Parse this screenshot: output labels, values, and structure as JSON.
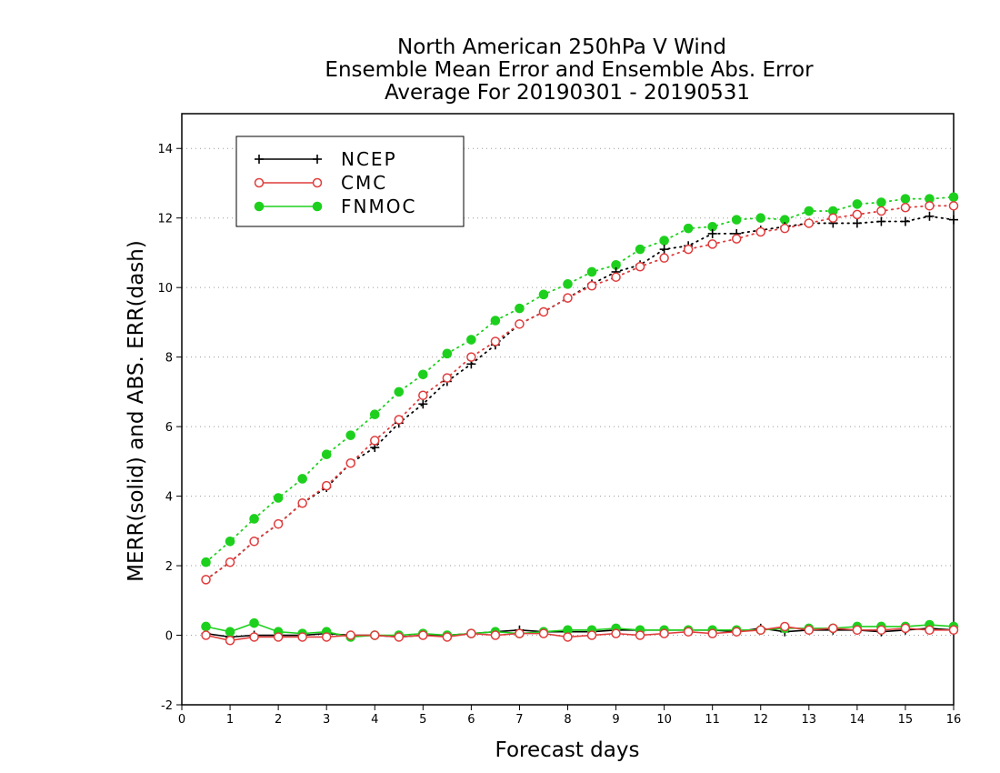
{
  "chart_data": {
    "type": "line",
    "title": [
      "North American 250hPa V Wind",
      "Ensemble Mean Error and Ensemble Abs. Error",
      "Average For 20190301 - 20190531"
    ],
    "xlabel": "Forecast days",
    "ylabel": "MERR(solid) and ABS. ERR(dash)",
    "xlim": [
      0,
      16
    ],
    "ylim": [
      -2,
      15
    ],
    "xticks": [
      0,
      1,
      2,
      3,
      4,
      5,
      6,
      7,
      8,
      9,
      10,
      11,
      12,
      13,
      14,
      15,
      16
    ],
    "yticks": [
      -2,
      0,
      2,
      4,
      6,
      8,
      10,
      12,
      14
    ],
    "grid": "horizontal dotted",
    "legend_position": "top-left",
    "x": [
      0.5,
      1,
      1.5,
      2,
      2.5,
      3,
      3.5,
      4,
      4.5,
      5,
      5.5,
      6,
      6.5,
      7,
      7.5,
      8,
      8.5,
      9,
      9.5,
      10,
      10.5,
      11,
      11.5,
      12,
      12.5,
      13,
      13.5,
      14,
      14.5,
      15,
      15.5,
      16
    ],
    "series": [
      {
        "name": "NCEP",
        "color": "#000000",
        "marker": "plus",
        "abs_err": [
          1.6,
          2.1,
          2.7,
          3.2,
          3.8,
          4.25,
          4.95,
          5.4,
          6.1,
          6.65,
          7.3,
          7.8,
          8.35,
          8.95,
          9.3,
          9.7,
          10.1,
          10.45,
          10.65,
          11.1,
          11.2,
          11.55,
          11.55,
          11.65,
          11.75,
          11.85,
          11.85,
          11.85,
          11.9,
          11.9,
          12.05,
          11.95
        ],
        "mean_err": [
          0.05,
          -0.05,
          0.0,
          0.0,
          0.0,
          0.05,
          0.0,
          0.0,
          -0.05,
          0.0,
          0.0,
          0.05,
          0.1,
          0.15,
          0.1,
          0.1,
          0.1,
          0.15,
          0.15,
          0.15,
          0.15,
          0.15,
          0.1,
          0.2,
          0.1,
          0.15,
          0.15,
          0.15,
          0.1,
          0.15,
          0.2,
          0.15
        ]
      },
      {
        "name": "CMC",
        "color": "#e03c3c",
        "marker": "open-circle",
        "abs_err": [
          1.6,
          2.1,
          2.7,
          3.2,
          3.8,
          4.3,
          4.95,
          5.6,
          6.2,
          6.9,
          7.4,
          8.0,
          8.45,
          8.95,
          9.3,
          9.7,
          10.05,
          10.3,
          10.6,
          10.85,
          11.1,
          11.25,
          11.4,
          11.6,
          11.7,
          11.85,
          12.0,
          12.1,
          12.2,
          12.3,
          12.35,
          12.35
        ],
        "mean_err": [
          0.0,
          -0.15,
          -0.05,
          -0.05,
          -0.05,
          -0.05,
          0.0,
          0.0,
          -0.05,
          0.0,
          -0.05,
          0.05,
          0.0,
          0.05,
          0.05,
          -0.05,
          0.0,
          0.05,
          0.0,
          0.05,
          0.1,
          0.05,
          0.1,
          0.15,
          0.25,
          0.15,
          0.2,
          0.15,
          0.15,
          0.2,
          0.15,
          0.15
        ]
      },
      {
        "name": "FNMOC",
        "color": "#1ed01e",
        "marker": "filled-circle",
        "abs_err": [
          2.1,
          2.7,
          3.35,
          3.95,
          4.5,
          5.2,
          5.75,
          6.35,
          7.0,
          7.5,
          8.1,
          8.5,
          9.05,
          9.4,
          9.8,
          10.1,
          10.45,
          10.65,
          11.1,
          11.35,
          11.7,
          11.75,
          11.95,
          12.0,
          11.95,
          12.2,
          12.2,
          12.4,
          12.45,
          12.55,
          12.55,
          12.6
        ]
      }
    ],
    "fnmoc_mean_err": [
      0.25,
      0.1,
      0.35,
      0.1,
      0.05,
      0.1,
      -0.05,
      0.0,
      0.0,
      0.05,
      0.0,
      0.05,
      0.1,
      0.05,
      0.1,
      0.15,
      0.15,
      0.2,
      0.15,
      0.15,
      0.15,
      0.15,
      0.15,
      0.15,
      0.2,
      0.2,
      0.2,
      0.25,
      0.25,
      0.25,
      0.3,
      0.25
    ]
  }
}
